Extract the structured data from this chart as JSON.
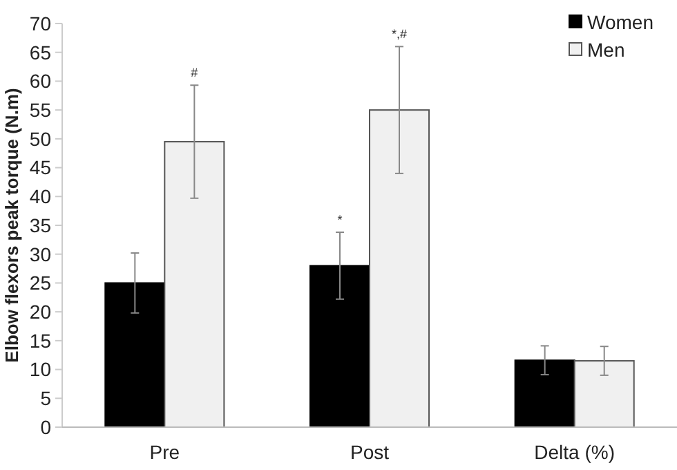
{
  "chart_data": {
    "type": "bar",
    "ylabel": "Elbow flexors peak torque (N.m)",
    "categories": [
      "Pre",
      "Post",
      "Delta (%)"
    ],
    "series": [
      {
        "name": "Women",
        "color": "#000000",
        "values": [
          25,
          28,
          11.6
        ],
        "errors": [
          5.2,
          5.8,
          2.5
        ]
      },
      {
        "name": "Men",
        "color": "#f0f0f0",
        "values": [
          49.5,
          55,
          11.5
        ],
        "errors": [
          9.8,
          11,
          2.5
        ]
      }
    ],
    "ylim": [
      0,
      70
    ],
    "yticks": [
      0,
      5,
      10,
      15,
      20,
      25,
      30,
      35,
      40,
      45,
      50,
      55,
      60,
      65,
      70
    ],
    "grid": false,
    "legend": "top right",
    "annotations": [
      "#",
      "*",
      "*,#"
    ]
  }
}
